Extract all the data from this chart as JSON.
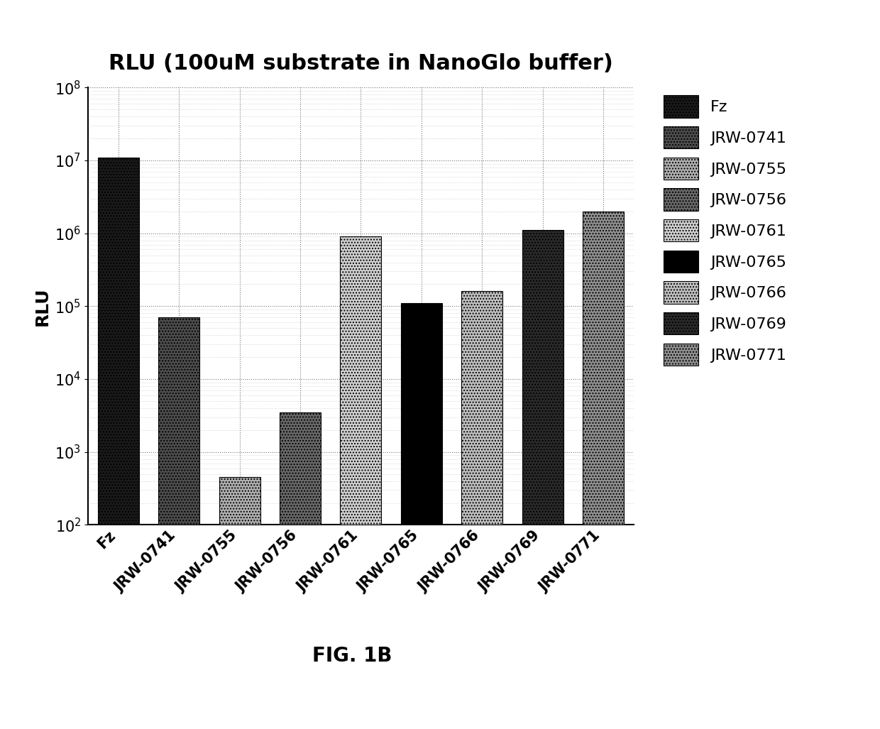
{
  "title": "RLU (100uM substrate in NanoGlo buffer)",
  "ylabel": "RLU",
  "fig_label": "FIG. 1B",
  "categories": [
    "Fz",
    "JRW-0741",
    "JRW-0755",
    "JRW-0756",
    "JRW-0761",
    "JRW-0765",
    "JRW-0766",
    "JRW-0769",
    "JRW-0771"
  ],
  "values": [
    11000000.0,
    70000.0,
    450.0,
    3500.0,
    900000.0,
    110000.0,
    160000.0,
    1100000.0,
    2000000.0
  ],
  "bar_colors": [
    "#1a1a1a",
    "#4d4d4d",
    "#b0b0b0",
    "#686868",
    "#d0d0d0",
    "#000000",
    "#c0c0c0",
    "#2a2a2a",
    "#909090"
  ],
  "bar_hatches": [
    "....",
    "....",
    "....",
    "....",
    "....",
    "",
    "....",
    "....",
    "...."
  ],
  "ylim_min": 100.0,
  "ylim_max": 100000000.0,
  "title_fontsize": 22,
  "axis_label_fontsize": 18,
  "tick_fontsize": 15,
  "legend_fontsize": 16,
  "fig_label_fontsize": 20,
  "background_color": "#ffffff"
}
